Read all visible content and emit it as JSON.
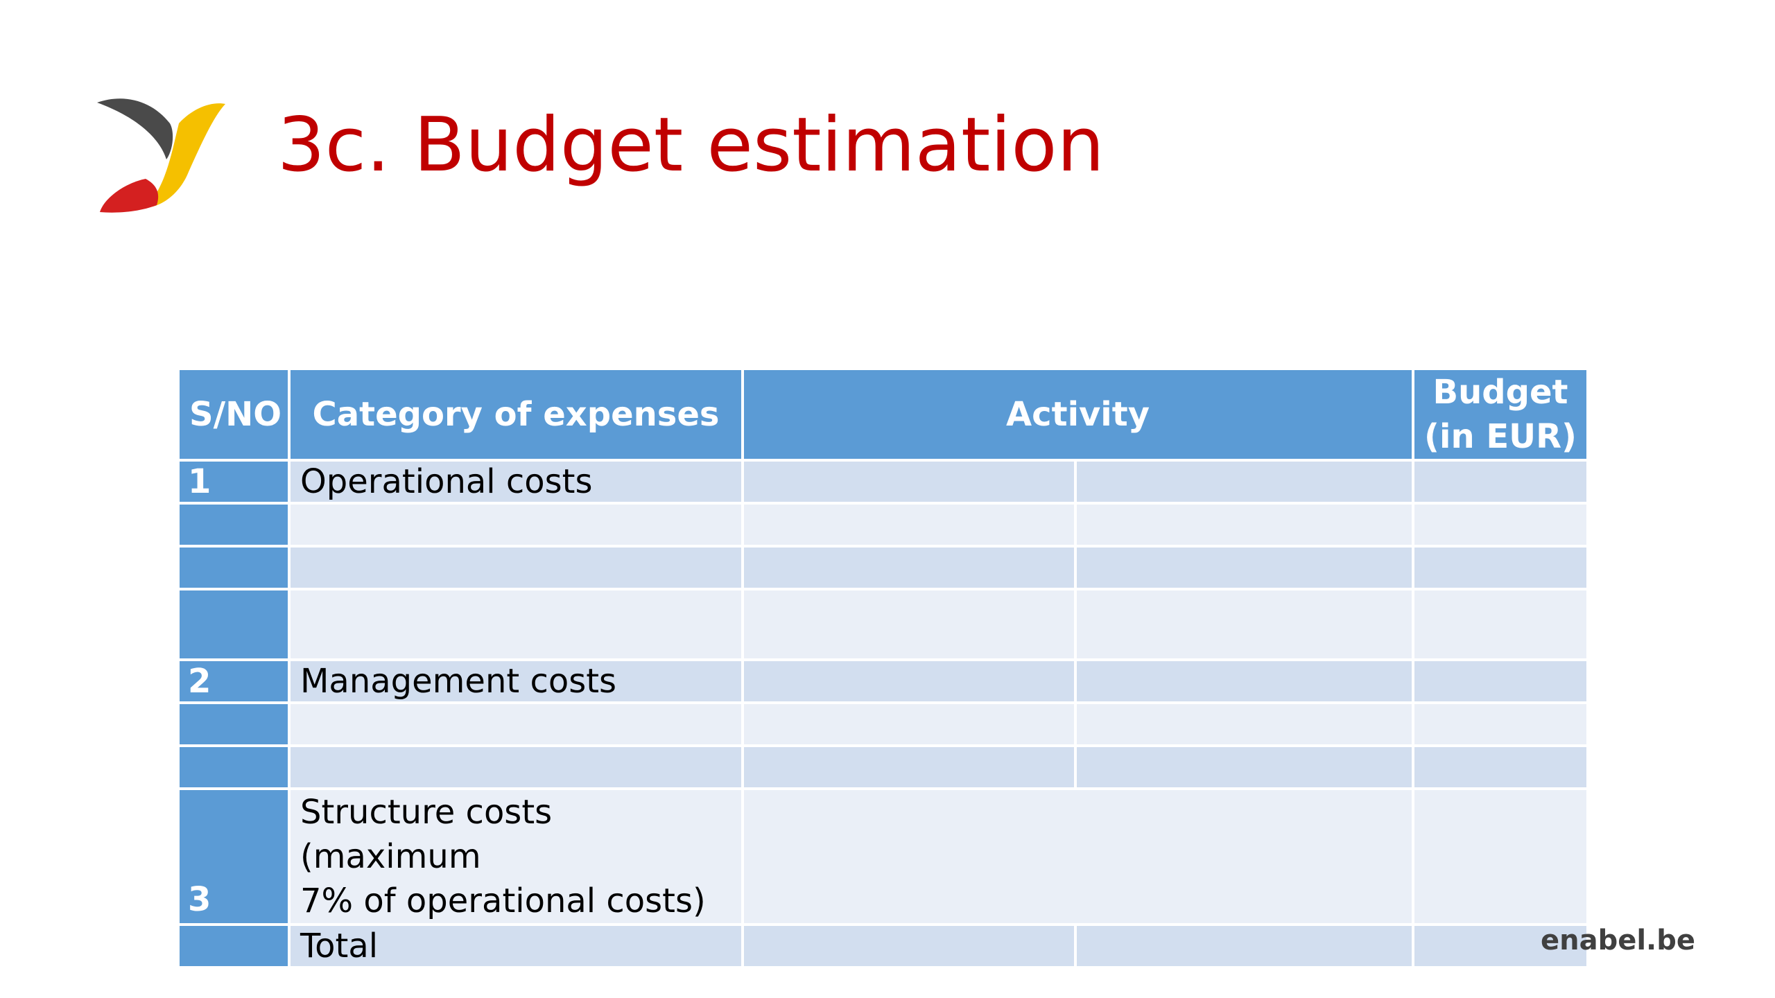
{
  "slide": {
    "title": "3c. Budget estimation",
    "brand": "enabel.be",
    "logo_icon": "enabel-bird-logo-icon"
  },
  "colors": {
    "title": "#c00000",
    "header_fill": "#5b9bd5",
    "row_dark": "#d2deef",
    "row_light": "#eaeff7"
  },
  "table": {
    "headers": {
      "sno": "S/NO",
      "category": "Category of expenses",
      "activity": "Activity",
      "budget_line1": "Budget",
      "budget_line2": "(in EUR)"
    },
    "rows": [
      {
        "sno": "1",
        "category": "Operational costs"
      },
      {
        "sno": "",
        "category": ""
      },
      {
        "sno": "",
        "category": ""
      },
      {
        "sno": "",
        "category": ""
      },
      {
        "sno": "2",
        "category": "Management costs"
      },
      {
        "sno": "",
        "category": ""
      },
      {
        "sno": "",
        "category": ""
      },
      {
        "sno": "3",
        "category_line1": "Structure costs (maximum",
        "category_line2": "7% of operational costs)"
      },
      {
        "sno": "",
        "category": "Total"
      }
    ]
  }
}
